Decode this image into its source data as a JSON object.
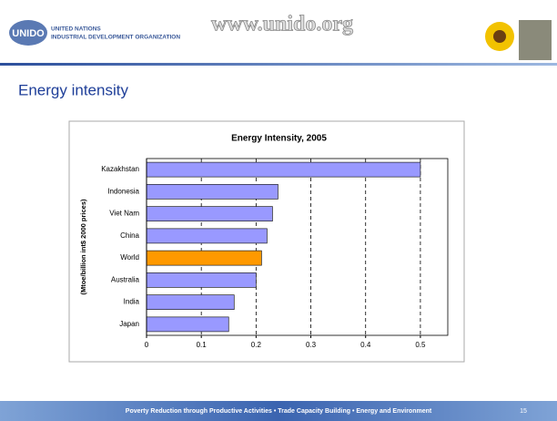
{
  "header": {
    "logo": "UNIDO",
    "org_line1": "UNITED NATIONS",
    "org_line2": "INDUSTRIAL DEVELOPMENT ORGANIZATION",
    "url": "www.unido.org"
  },
  "slide_title": "Energy intensity",
  "chart_data": {
    "type": "hbar",
    "title": "Energy Intensity, 2005",
    "ylabel": "(Mtoe/billion int$ 2000 prices)",
    "categories": [
      "Kazakhstan",
      "Indonesia",
      "Viet Nam",
      "China",
      "World",
      "Australia",
      "India",
      "Japan"
    ],
    "values": [
      0.5,
      0.24,
      0.23,
      0.22,
      0.21,
      0.2,
      0.16,
      0.15
    ],
    "colors": [
      "#9999ff",
      "#9999ff",
      "#9999ff",
      "#9999ff",
      "#ff9900",
      "#9999ff",
      "#9999ff",
      "#9999ff"
    ],
    "xlim": [
      0,
      0.55
    ],
    "xticks": [
      0,
      0.1,
      0.2,
      0.3,
      0.4,
      0.5
    ],
    "grid": true
  },
  "footer": {
    "text": "Poverty Reduction through Productive Activities  •  Trade Capacity Building  •  Energy and Environment",
    "page": "15"
  }
}
